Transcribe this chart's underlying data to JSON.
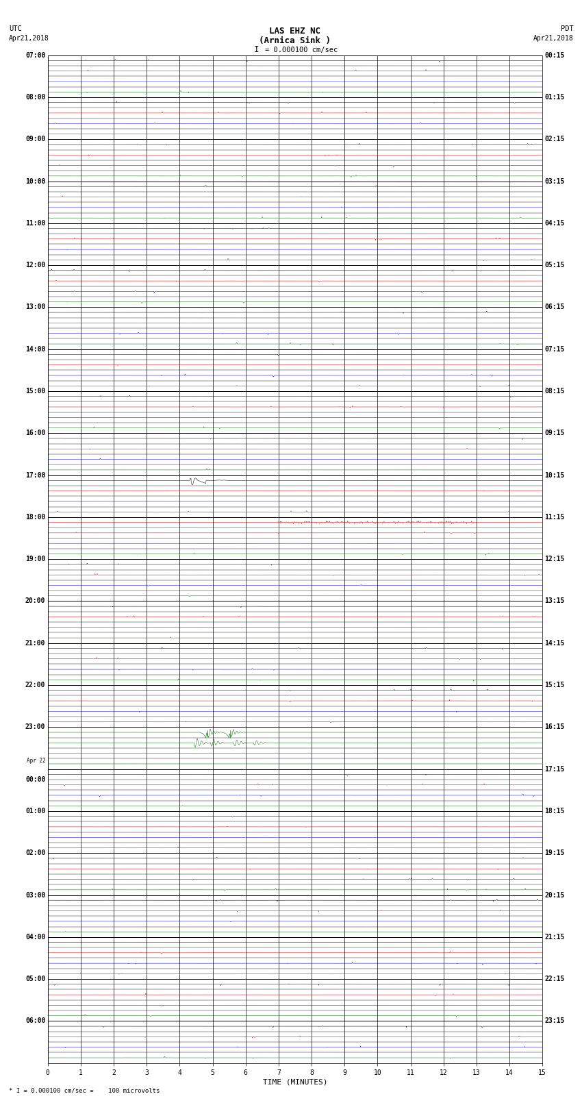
{
  "title_line1": "LAS EHZ NC",
  "title_line2": "(Arnica Sink )",
  "scale_text": "= 0.000100 cm/sec",
  "scale_bar": "I",
  "top_left_line1": "UTC",
  "top_left_line2": "Apr21,2018",
  "top_right_line1": "PDT",
  "top_right_line2": "Apr21,2018",
  "bottom_label": "* I = 0.000100 cm/sec =    100 microvolts",
  "xlabel": "TIME (MINUTES)",
  "utc_row_labels": [
    "07:00",
    "",
    "",
    "",
    "08:00",
    "",
    "",
    "",
    "09:00",
    "",
    "",
    "",
    "10:00",
    "",
    "",
    "",
    "11:00",
    "",
    "",
    "",
    "12:00",
    "",
    "",
    "",
    "13:00",
    "",
    "",
    "",
    "14:00",
    "",
    "",
    "",
    "15:00",
    "",
    "",
    "",
    "16:00",
    "",
    "",
    "",
    "17:00",
    "",
    "",
    "",
    "18:00",
    "",
    "",
    "",
    "19:00",
    "",
    "",
    "",
    "20:00",
    "",
    "",
    "",
    "21:00",
    "",
    "",
    "",
    "22:00",
    "",
    "",
    "",
    "23:00",
    "",
    "",
    "",
    "Apr 22",
    "00:00",
    "",
    "",
    "01:00",
    "",
    "",
    "",
    "02:00",
    "",
    "",
    "",
    "03:00",
    "",
    "",
    "",
    "04:00",
    "",
    "",
    "",
    "05:00",
    "",
    "",
    "",
    "06:00",
    "",
    "",
    ""
  ],
  "pdt_row_labels": [
    "00:15",
    "",
    "",
    "",
    "01:15",
    "",
    "",
    "",
    "02:15",
    "",
    "",
    "",
    "03:15",
    "",
    "",
    "",
    "04:15",
    "",
    "",
    "",
    "05:15",
    "",
    "",
    "",
    "06:15",
    "",
    "",
    "",
    "07:15",
    "",
    "",
    "",
    "08:15",
    "",
    "",
    "",
    "09:15",
    "",
    "",
    "",
    "10:15",
    "",
    "",
    "",
    "11:15",
    "",
    "",
    "",
    "12:15",
    "",
    "",
    "",
    "13:15",
    "",
    "",
    "",
    "14:15",
    "",
    "",
    "",
    "15:15",
    "",
    "",
    "",
    "16:15",
    "",
    "",
    "",
    "17:15",
    "",
    "",
    "",
    "18:15",
    "",
    "",
    "",
    "19:15",
    "",
    "",
    "",
    "20:15",
    "",
    "",
    "",
    "21:15",
    "",
    "",
    "",
    "22:15",
    "",
    "",
    "",
    "23:15",
    "",
    "",
    ""
  ],
  "n_rows": 96,
  "xmin": 0,
  "xmax": 15,
  "background_color": "#ffffff",
  "row_color_cycle": [
    "#000000",
    "#cc0000",
    "#0000cc",
    "#006600"
  ],
  "event_black_row": 40,
  "event_green_rows": [
    64,
    65,
    66,
    67
  ],
  "event_red_row": 44,
  "noise_amp": 0.04,
  "event_black_amp": 0.6,
  "event_green_amp": 0.7
}
